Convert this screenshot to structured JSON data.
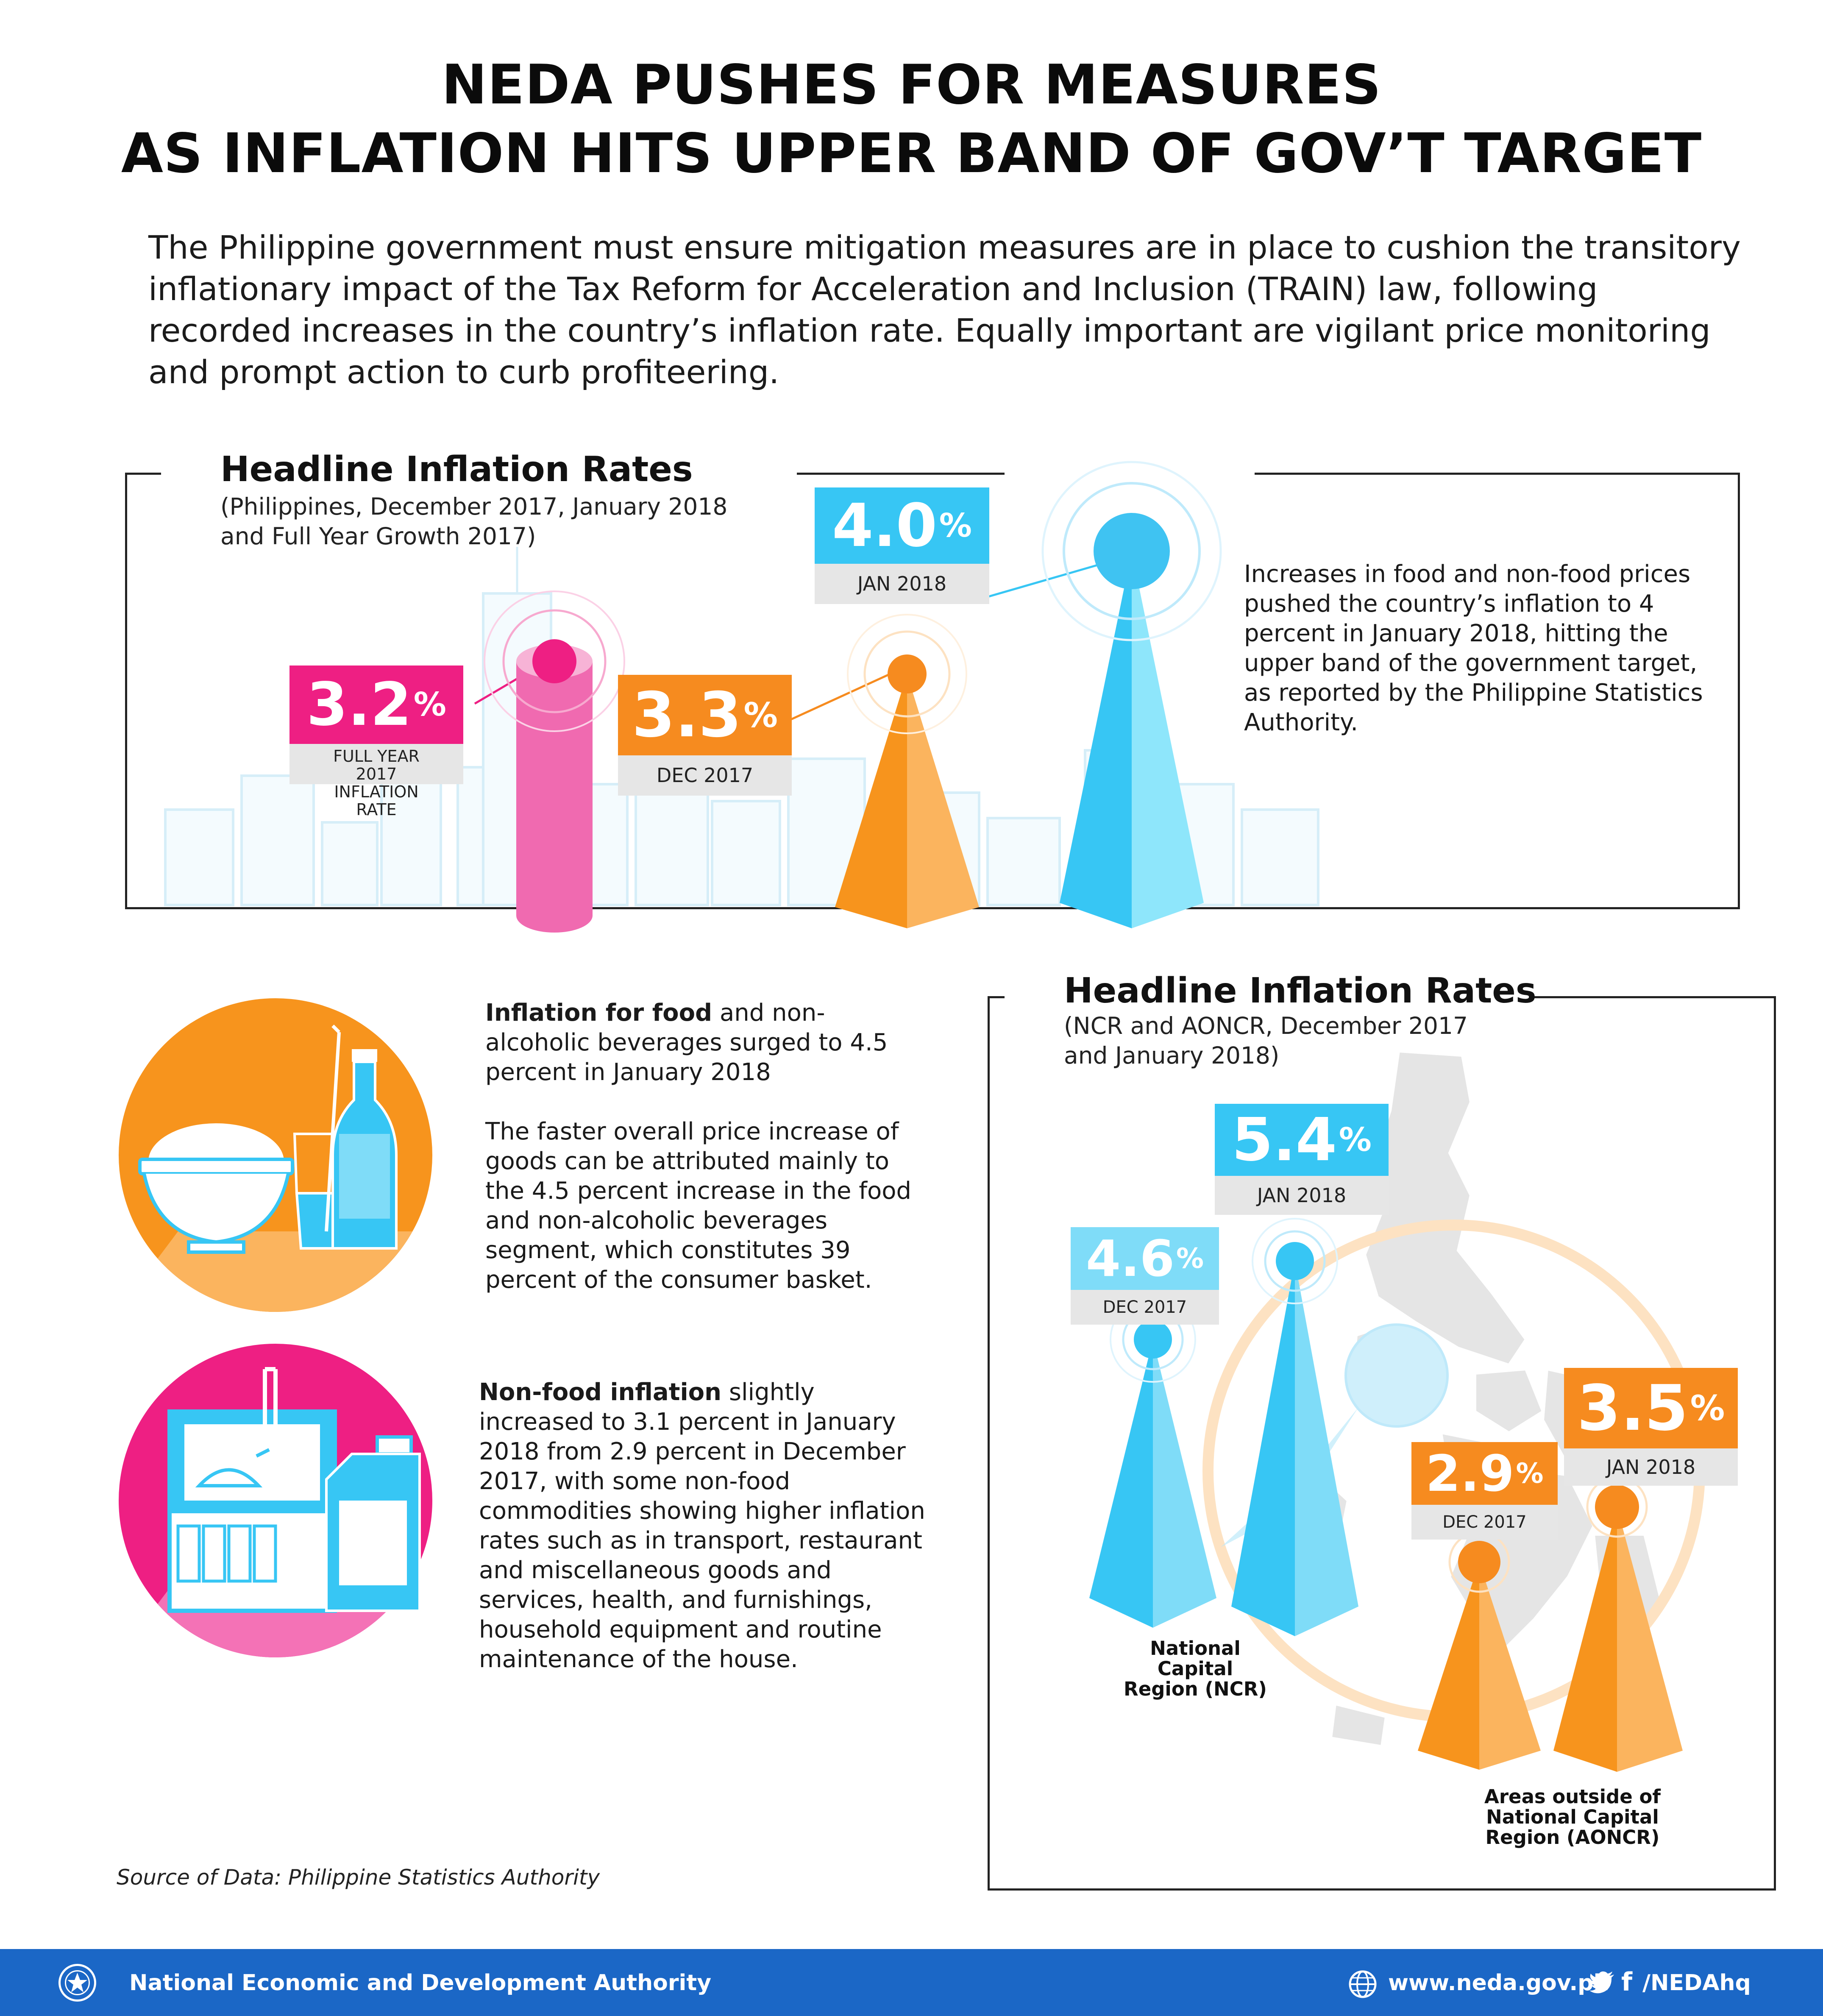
{
  "title_line1": "NEDA PUSHES FOR MEASURES",
  "title_line2": "AS INFLATION HITS UPPER BAND OF GOV’T TARGET",
  "intro": "The Philippine government must ensure mitigation measures are in place to cushion the transitory inflationary impact of the Tax Reform for Acceleration and Inclusion (TRAIN) law, following recorded increases in the country’s inflation rate.  Equally important are vigilant price monitoring and prompt action to curb profiteering.",
  "section1": {
    "title": "Headline Inflation Rates",
    "subtitle_line1": "(Philippines,  December 2017, January 2018",
    "subtitle_line2": "and Full Year Growth 2017)",
    "note": "Increases in food and non-food prices pushed the country’s inflation to 4 percent in January 2018, hitting the upper band of the government target, as reported by the Philippine Statistics Authority."
  },
  "section2": {
    "title": "Headline Inflation Rates",
    "subtitle_line1": "(NCR and AONCR, December 2017",
    "subtitle_line2": "and January 2018)",
    "ncr_label_line1": "National Capital",
    "ncr_label_line2": "Region (NCR)",
    "aoncr_label_line1": "Areas outside of",
    "aoncr_label_line2": "National Capital",
    "aoncr_label_line3": "Region (AONCR)"
  },
  "food_text": {
    "lead_bold": "Inflation for food",
    "lead_rest": " and non-alcoholic beverages surged to 4.5 percent in January 2018",
    "body": "The faster overall price increase of goods can be attributed mainly to the 4.5 percent increase in the food and non-alcoholic beverages segment, which constitutes 39 percent of the consumer basket."
  },
  "nonfood_text": {
    "lead_bold": "Non-food inflation",
    "lead_rest": " slightly increased to 3.1 percent in January 2018 from 2.9 percent in December 2017, with some non-food commodities showing higher inflation rates such as in transport, restaurant and miscellaneous goods and services, health, and furnishings, household equipment and routine maintenance of the house."
  },
  "source": "Source of Data: Philippine Statistics Authority",
  "footer": {
    "org": "National Economic and Development Authority",
    "website": "www.neda.gov.ph",
    "social": "/NEDAhq"
  },
  "colors": {
    "pink": "#ee1f83",
    "orange": "#f68b1f",
    "blue": "#37c6f4",
    "gray_label": "#e6e6e6",
    "footer_blue": "#1b67c6"
  },
  "icons": [
    "bowl-icon",
    "glass-icon",
    "bottle-icon",
    "microwave-icon",
    "detergent-icon",
    "globe-icon",
    "twitter-icon",
    "facebook-icon",
    "neda-logo-icon"
  ],
  "chart_data": [
    {
      "type": "bar",
      "categories": [
        "FULL YEAR 2017 INFLATION RATE",
        "DEC 2017",
        "JAN 2018"
      ],
      "values": [
        3.2,
        3.3,
        4.0
      ],
      "value_texts": [
        "3.2",
        "3.3",
        "4.0"
      ],
      "unit": "%",
      "series_colors": [
        "#ee1f83",
        "#f68b1f",
        "#37c6f4"
      ]
    },
    {
      "type": "bar",
      "categories": [
        "DEC 2017",
        "JAN 2018"
      ],
      "series": [
        {
          "name": "National Capital Region (NCR)",
          "values": [
            4.6,
            5.4
          ],
          "value_texts": [
            "4.6",
            "5.4"
          ],
          "color": "#37c6f4"
        },
        {
          "name": "Areas outside of National Capital Region (AONCR)",
          "values": [
            2.9,
            3.5
          ],
          "value_texts": [
            "2.9",
            "3.5"
          ],
          "color": "#f68b1f"
        }
      ],
      "unit": "%"
    }
  ]
}
